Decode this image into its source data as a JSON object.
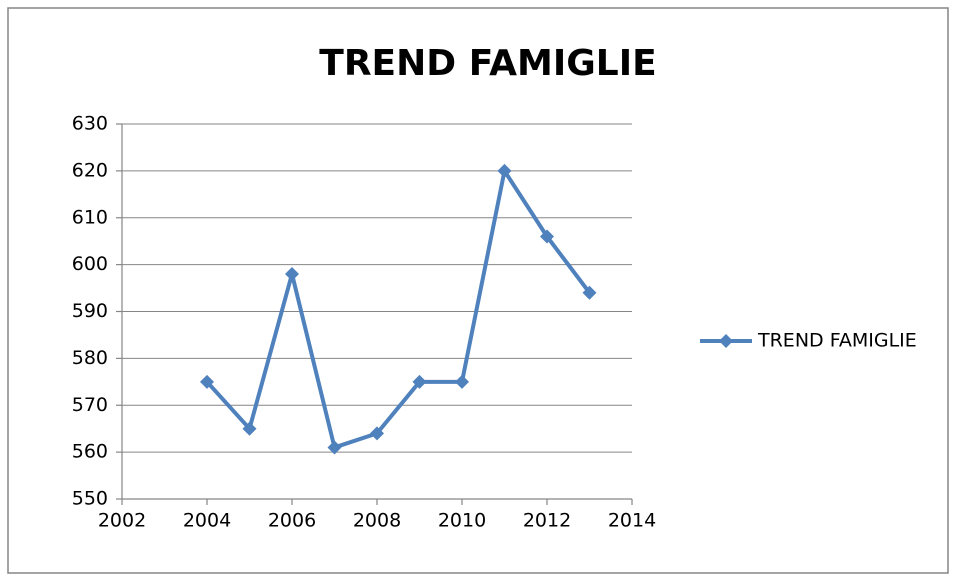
{
  "chart_data": {
    "type": "line",
    "title": "TREND FAMIGLIE",
    "x": [
      2004,
      2005,
      2006,
      2007,
      2008,
      2009,
      2010,
      2011,
      2012,
      2013
    ],
    "series": [
      {
        "name": "TREND FAMIGLIE",
        "color": "#4f81bd",
        "values": [
          575,
          565,
          598,
          561,
          564,
          575,
          575,
          620,
          606,
          594
        ]
      }
    ],
    "xlim": [
      2002,
      2014
    ],
    "xticks": [
      2002,
      2004,
      2006,
      2008,
      2010,
      2012,
      2014
    ],
    "ylim": [
      550,
      630
    ],
    "yticks": [
      550,
      560,
      570,
      580,
      590,
      600,
      610,
      620,
      630
    ],
    "grid": true,
    "legend": "right"
  }
}
